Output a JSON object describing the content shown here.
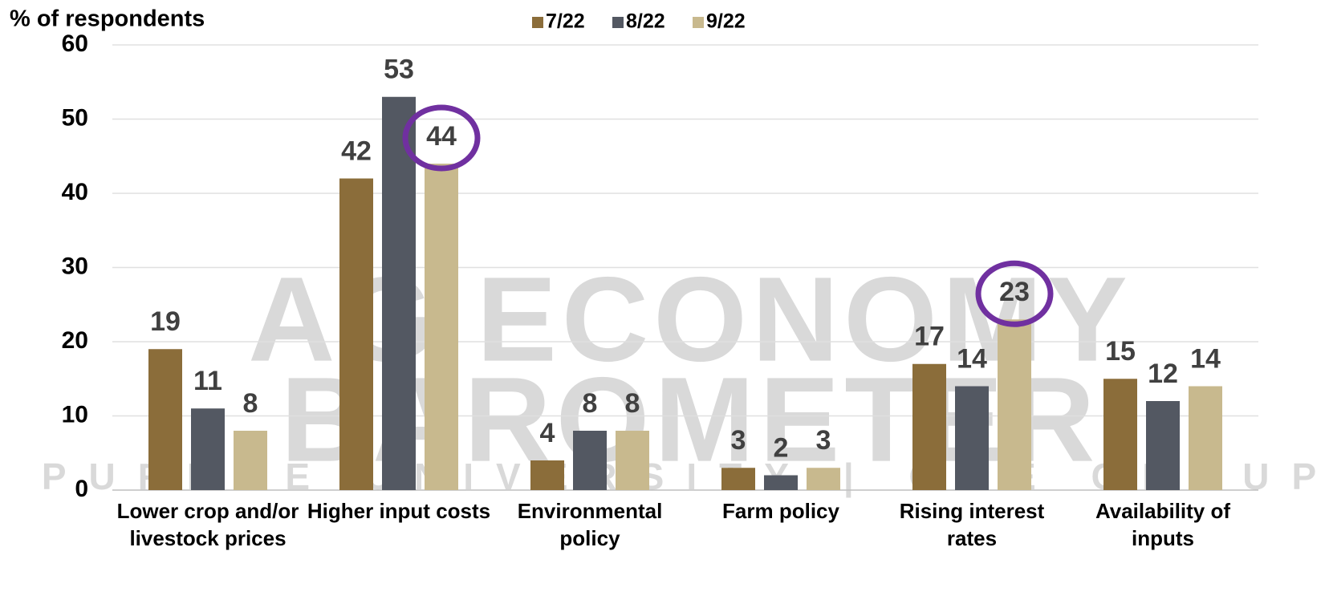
{
  "chart_data": {
    "type": "bar",
    "y_label": "% of respondents",
    "categories": [
      "Lower crop and/or livestock prices",
      "Higher input costs",
      "Environmental policy",
      "Farm policy",
      "Rising interest rates",
      "Availability of inputs"
    ],
    "series": [
      {
        "name": "7/22",
        "color": "#8b6d3a",
        "values": [
          19,
          42,
          4,
          3,
          17,
          15
        ]
      },
      {
        "name": "8/22",
        "color": "#535862",
        "values": [
          11,
          53,
          8,
          2,
          14,
          12
        ]
      },
      {
        "name": "9/22",
        "color": "#c8b98e",
        "values": [
          8,
          44,
          8,
          3,
          23,
          14
        ]
      }
    ],
    "ylim": [
      0,
      60
    ],
    "yticks": [
      0,
      10,
      20,
      30,
      40,
      50,
      60
    ],
    "grid": true,
    "legend": "top",
    "highlighted": [
      [
        2,
        1
      ],
      [
        2,
        4
      ]
    ],
    "highlight_color": "#7030a0",
    "watermark": [
      "AG ECONOMY",
      "BAROMETER",
      "PURDUE UNIVERSITY | CME GROUP"
    ]
  }
}
